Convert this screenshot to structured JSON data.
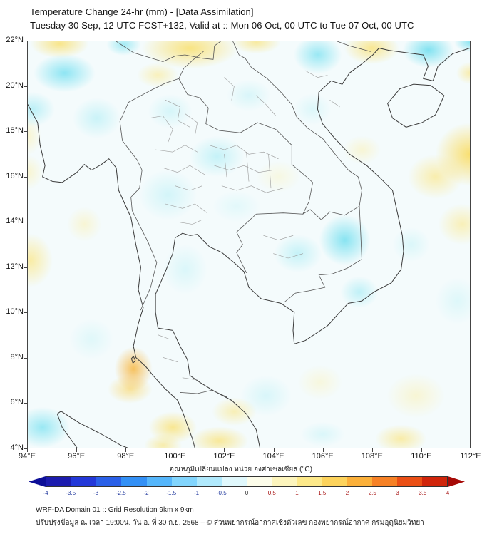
{
  "header": {
    "title": "Temperature Change 24-hr (mm) - [Data Assimilation]",
    "subtitle": "Tuesday 30 Sep, 12 UTC FCST+132, Valid at :: Mon 06 Oct, 00 UTC to Tue 07 Oct, 00 UTC"
  },
  "footer": {
    "line1": "WRF-DA Domain 01 :: Grid Resolution 9km x 9km",
    "line2": "ปรับปรุงข้อมูล ณ เวลา 19:00น. วัน อ. ที่ 30 ก.ย. 2568 – © ส่วนพยากรณ์อากาศเชิงตัวเลข กองพยากรณ์อากาศ กรมอุตุนิยมวิทยา"
  },
  "chart_data": {
    "type": "heatmap",
    "title": "Temperature Change 24-hr (mm) - [Data Assimilation]",
    "subtitle": "Tuesday 30 Sep, 12 UTC FCST+132, Valid at :: Mon 06 Oct, 00 UTC to Tue 07 Oct, 00 UTC",
    "region": "Thailand / Indochina",
    "x_range": [
      94,
      112
    ],
    "y_range": [
      4,
      22
    ],
    "x_ticks": [
      {
        "value": 94,
        "label": "94°E"
      },
      {
        "value": 96,
        "label": "96°E"
      },
      {
        "value": 98,
        "label": "98°E"
      },
      {
        "value": 100,
        "label": "100°E"
      },
      {
        "value": 102,
        "label": "102°E"
      },
      {
        "value": 104,
        "label": "104°E"
      },
      {
        "value": 106,
        "label": "106°E"
      },
      {
        "value": 108,
        "label": "108°E"
      },
      {
        "value": 110,
        "label": "110°E"
      },
      {
        "value": 112,
        "label": "112°E"
      }
    ],
    "y_ticks": [
      {
        "value": 22,
        "label": "22°N"
      },
      {
        "value": 20,
        "label": "20°N"
      },
      {
        "value": 18,
        "label": "18°N"
      },
      {
        "value": 16,
        "label": "16°N"
      },
      {
        "value": 14,
        "label": "14°N"
      },
      {
        "value": 12,
        "label": "12°N"
      },
      {
        "value": 10,
        "label": "10°N"
      },
      {
        "value": 8,
        "label": "8°N"
      },
      {
        "value": 6,
        "label": "6°N"
      },
      {
        "value": 4,
        "label": "4°N"
      }
    ],
    "base_color": "#f4fbfc",
    "colorbar": {
      "label": "อุณหภูมิเปลี่ยนแปลง หน่วย องศาเซลเซียส (°C)",
      "units": "°C",
      "tick_labels": [
        "-4",
        "-3.5",
        "-3",
        "-2.5",
        "-2",
        "-1.5",
        "-1",
        "-0.5",
        "0",
        "0.5",
        "1",
        "1.5",
        "2",
        "2.5",
        "3",
        "3.5",
        "4"
      ],
      "segment_colors": [
        "#1c1cae",
        "#2338d8",
        "#2a60e8",
        "#3390f5",
        "#55b6fb",
        "#82d5fd",
        "#b0e9fc",
        "#e0f8fc",
        "#fdfdea",
        "#fdf5bd",
        "#fde98a",
        "#fdd35c",
        "#fbb03a",
        "#f68126",
        "#ea4f15",
        "#d0250b"
      ],
      "arrow_left_color": "#0d0f97",
      "arrow_right_color": "#a60a07",
      "negative_label_color": "#233a9e",
      "positive_label_color": "#a61212"
    },
    "anomaly_blobs": [
      {
        "lon": 98.3,
        "lat": 7.5,
        "rlon": 1.1,
        "rlat": 1.4,
        "color": "rgba(247,183,66,0.85)"
      },
      {
        "lon": 98.15,
        "lat": 6.6,
        "rlon": 1.3,
        "rlat": 0.9,
        "color": "rgba(250,210,90,0.6)"
      },
      {
        "lon": 95.5,
        "lat": 20.6,
        "rlon": 1.8,
        "rlat": 1.2,
        "color": "rgba(108,222,240,0.75)"
      },
      {
        "lon": 110.3,
        "lat": 21.6,
        "rlon": 1.5,
        "rlat": 1.1,
        "color": "rgba(100,220,238,0.8)"
      },
      {
        "lon": 105.8,
        "lat": 21.4,
        "rlon": 1.4,
        "rlat": 1.2,
        "color": "rgba(115,224,240,0.7)"
      },
      {
        "lon": 106.9,
        "lat": 13.2,
        "rlon": 1.5,
        "rlat": 1.6,
        "color": "rgba(100,220,238,0.75)"
      },
      {
        "lon": 112.0,
        "lat": 17.0,
        "rlon": 2.0,
        "rlat": 2.0,
        "color": "rgba(250,218,88,0.85)"
      },
      {
        "lon": 100.6,
        "lat": 21.7,
        "rlon": 2.8,
        "rlat": 1.3,
        "color": "rgba(250,222,100,0.8)"
      },
      {
        "lon": 95.3,
        "lat": 21.9,
        "rlon": 1.7,
        "rlat": 0.9,
        "color": "rgba(250,222,100,0.75)"
      },
      {
        "lon": 108.0,
        "lat": 21.7,
        "rlon": 1.6,
        "rlat": 1.0,
        "color": "rgba(250,222,100,0.7)"
      },
      {
        "lon": 103.3,
        "lat": 21.95,
        "rlon": 1.4,
        "rlat": 0.7,
        "color": "rgba(250,225,110,0.65)"
      },
      {
        "lon": 97.9,
        "lat": 21.85,
        "rlon": 1.0,
        "rlat": 0.7,
        "color": "rgba(120,226,240,0.65)"
      },
      {
        "lon": 112.0,
        "lat": 21.95,
        "rlon": 0.9,
        "rlat": 0.6,
        "color": "rgba(110,222,238,0.75)"
      },
      {
        "lon": 94.6,
        "lat": 4.9,
        "rlon": 1.6,
        "rlat": 1.3,
        "color": "rgba(115,224,240,0.7)"
      },
      {
        "lon": 94.1,
        "lat": 12.3,
        "rlon": 1.3,
        "rlat": 1.7,
        "color": "rgba(252,228,118,0.65)"
      },
      {
        "lon": 99.9,
        "lat": 4.9,
        "rlon": 1.4,
        "rlat": 1.0,
        "color": "rgba(250,222,100,0.7)"
      },
      {
        "lon": 101.8,
        "lat": 4.3,
        "rlon": 1.7,
        "rlat": 0.9,
        "color": "rgba(250,222,100,0.65)"
      },
      {
        "lon": 102.4,
        "lat": 5.6,
        "rlon": 1.3,
        "rlat": 0.9,
        "color": "rgba(251,226,112,0.5)"
      },
      {
        "lon": 109.2,
        "lat": 4.4,
        "rlon": 1.5,
        "rlat": 0.9,
        "color": "rgba(251,226,112,0.6)"
      },
      {
        "lon": 110.6,
        "lat": 16.0,
        "rlon": 1.6,
        "rlat": 1.4,
        "color": "rgba(252,228,120,0.6)"
      },
      {
        "lon": 111.7,
        "lat": 13.9,
        "rlon": 1.4,
        "rlat": 1.3,
        "color": "rgba(252,230,128,0.55)"
      },
      {
        "lon": 112.0,
        "lat": 20.6,
        "rlon": 0.8,
        "rlat": 0.7,
        "color": "rgba(251,225,110,0.55)"
      },
      {
        "lon": 94.2,
        "lat": 19.0,
        "rlon": 1.3,
        "rlat": 1.1,
        "color": "rgba(140,230,242,0.55)"
      },
      {
        "lon": 96.8,
        "lat": 18.6,
        "rlon": 1.4,
        "rlat": 1.3,
        "color": "rgba(160,235,244,0.5)"
      },
      {
        "lon": 101.7,
        "lat": 16.9,
        "rlon": 1.6,
        "rlat": 1.3,
        "color": "rgba(150,233,243,0.5)"
      },
      {
        "lon": 99.7,
        "lat": 15.2,
        "rlon": 1.7,
        "rlat": 1.6,
        "color": "rgba(170,237,245,0.45)"
      },
      {
        "lon": 99.8,
        "lat": 18.9,
        "rlon": 1.3,
        "rlat": 1.1,
        "color": "rgba(175,238,245,0.45)"
      },
      {
        "lon": 103.0,
        "lat": 19.6,
        "rlon": 1.3,
        "rlat": 1.0,
        "color": "rgba(175,238,245,0.4)"
      },
      {
        "lon": 105.0,
        "lat": 12.6,
        "rlon": 1.4,
        "rlat": 1.2,
        "color": "rgba(150,233,243,0.5)"
      },
      {
        "lon": 107.5,
        "lat": 10.9,
        "rlon": 1.1,
        "rlat": 1.0,
        "color": "rgba(140,230,242,0.5)"
      },
      {
        "lon": 100.4,
        "lat": 11.9,
        "rlon": 1.3,
        "rlat": 1.6,
        "color": "rgba(180,240,246,0.4)"
      },
      {
        "lon": 103.7,
        "lat": 6.3,
        "rlon": 1.5,
        "rlat": 1.3,
        "color": "rgba(175,238,245,0.4)"
      },
      {
        "lon": 106.0,
        "lat": 4.6,
        "rlon": 1.3,
        "rlat": 0.8,
        "color": "rgba(180,240,246,0.4)"
      },
      {
        "lon": 111.5,
        "lat": 10.5,
        "rlon": 1.3,
        "rlat": 1.5,
        "color": "rgba(185,241,246,0.38)"
      },
      {
        "lon": 109.6,
        "lat": 13.0,
        "rlon": 1.1,
        "rlat": 1.1,
        "color": "rgba(180,240,246,0.4)"
      },
      {
        "lon": 105.6,
        "lat": 19.0,
        "rlon": 1.1,
        "rlat": 1.0,
        "color": "rgba(182,240,246,0.38)"
      },
      {
        "lon": 96.6,
        "lat": 8.8,
        "rlon": 1.3,
        "rlat": 1.3,
        "color": "rgba(185,241,246,0.35)"
      },
      {
        "lon": 99.5,
        "lat": 4.1,
        "rlon": 1.1,
        "rlat": 0.7,
        "color": "rgba(250,224,105,0.55)"
      },
      {
        "lon": 107.6,
        "lat": 17.2,
        "rlon": 1.1,
        "rlat": 0.9,
        "color": "rgba(253,236,152,0.4)"
      },
      {
        "lon": 96.3,
        "lat": 13.9,
        "rlon": 1.0,
        "rlat": 1.1,
        "color": "rgba(253,236,152,0.4)"
      },
      {
        "lon": 94.0,
        "lat": 16.2,
        "rlon": 0.9,
        "rlat": 1.1,
        "color": "rgba(253,237,155,0.45)"
      },
      {
        "lon": 94.0,
        "lat": 17.8,
        "rlon": 0.8,
        "rlat": 1.2,
        "color": "rgba(253,237,155,0.45)"
      },
      {
        "lon": 109.8,
        "lat": 6.3,
        "rlon": 1.7,
        "rlat": 1.4,
        "color": "rgba(253,236,152,0.4)"
      },
      {
        "lon": 102.5,
        "lat": 14.7,
        "rlon": 1.4,
        "rlat": 1.0,
        "color": "rgba(188,242,247,0.32)"
      },
      {
        "lon": 104.2,
        "lat": 16.0,
        "rlon": 1.3,
        "rlat": 1.0,
        "color": "rgba(253,240,165,0.3)"
      },
      {
        "lon": 105.9,
        "lat": 6.9,
        "rlon": 1.3,
        "rlat": 1.1,
        "color": "rgba(253,238,158,0.32)"
      },
      {
        "lon": 99.3,
        "lat": 20.5,
        "rlon": 1.2,
        "rlat": 0.8,
        "color": "rgba(252,230,125,0.5)"
      }
    ]
  }
}
